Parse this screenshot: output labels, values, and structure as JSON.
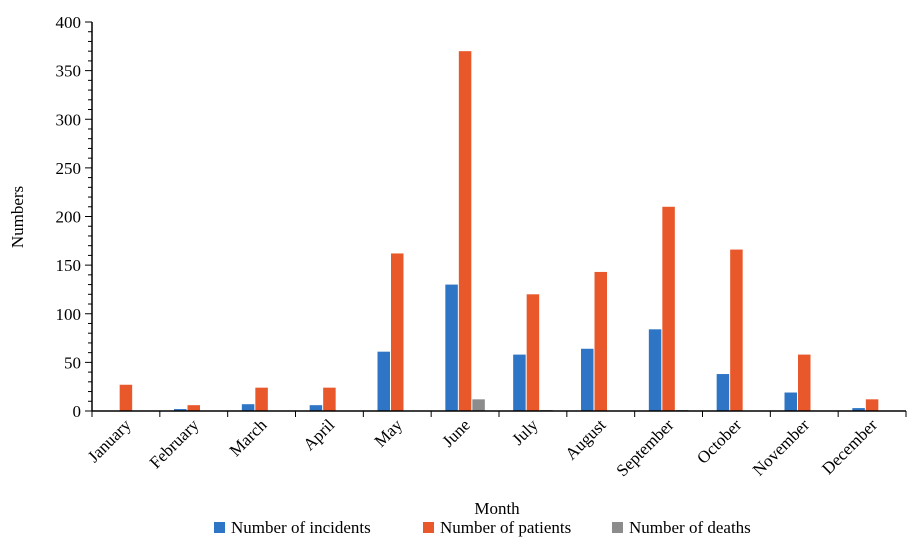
{
  "chart_data": {
    "type": "bar",
    "xlabel": "Month",
    "ylabel": "Numbers",
    "ylim": [
      0,
      400
    ],
    "yticks": [
      "0",
      "50",
      "100",
      "150",
      "200",
      "250",
      "300",
      "350",
      "400"
    ],
    "categories": [
      "January",
      "February",
      "March",
      "April",
      "May",
      "June",
      "July",
      "August",
      "September",
      "October",
      "November",
      "December"
    ],
    "series": [
      {
        "name": "Number of incidents",
        "color": "#2e75c5",
        "values": [
          0,
          2,
          7,
          6,
          61,
          130,
          58,
          64,
          84,
          38,
          19,
          3
        ]
      },
      {
        "name": "Number of patients",
        "color": "#e8582a",
        "values": [
          27,
          6,
          24,
          24,
          162,
          370,
          120,
          143,
          210,
          166,
          58,
          12
        ]
      },
      {
        "name": "Number of deaths",
        "color": "#8c8c8c",
        "values": [
          0,
          0,
          0,
          0,
          0,
          12,
          1,
          0,
          1,
          0,
          0,
          0
        ]
      }
    ],
    "grid": false,
    "legend": "bottom"
  }
}
